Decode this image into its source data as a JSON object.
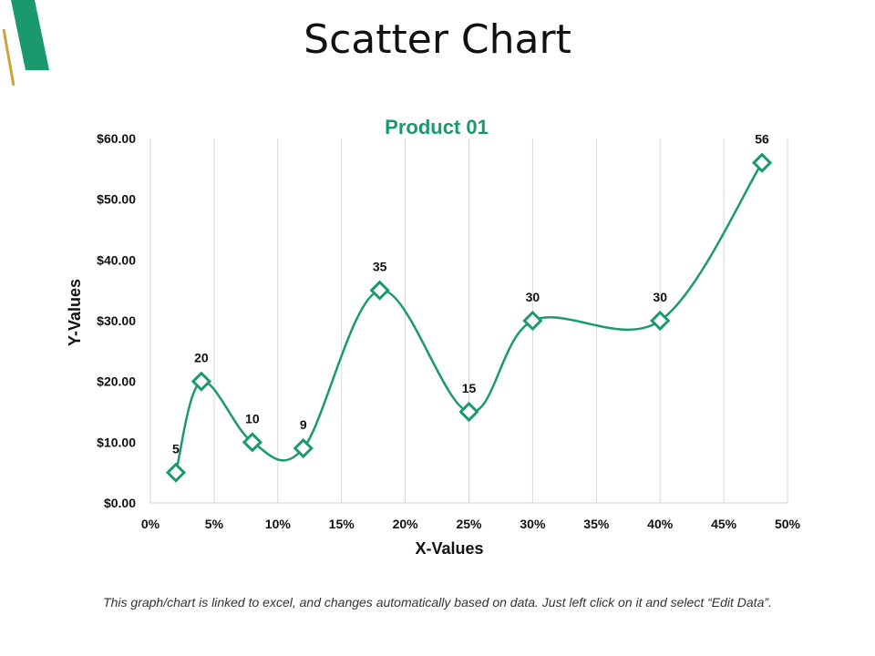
{
  "slide": {
    "title": "Scatter Chart",
    "footnote": "This graph/chart is linked to excel, and changes automatically based on data. Just left click on it and select “Edit Data”."
  },
  "colors": {
    "accent_green": "#1a9a6c",
    "accent_gold": "#c8a43a",
    "gridline": "#d9d9d9",
    "axis_text": "#111111"
  },
  "chart_data": {
    "type": "scatter",
    "title": "Product 01",
    "xlabel": "X-Values",
    "ylabel": "Y-Values",
    "xlim": [
      0,
      0.5
    ],
    "ylim": [
      0,
      60
    ],
    "x_ticks": [
      0,
      0.05,
      0.1,
      0.15,
      0.2,
      0.25,
      0.3,
      0.35,
      0.4,
      0.45,
      0.5
    ],
    "x_tick_labels": [
      "0%",
      "5%",
      "10%",
      "15%",
      "20%",
      "25%",
      "30%",
      "35%",
      "40%",
      "45%",
      "50%"
    ],
    "y_ticks": [
      0,
      10,
      20,
      30,
      40,
      50,
      60
    ],
    "y_tick_labels": [
      "$0.00",
      "$10.00",
      "$20.00",
      "$30.00",
      "$40.00",
      "$50.00",
      "$60.00"
    ],
    "grid": "vertical",
    "smooth_line": true,
    "marker": "diamond",
    "series": [
      {
        "x": [
          0.02,
          0.04,
          0.08,
          0.12,
          0.18,
          0.25,
          0.3,
          0.4,
          0.48
        ],
        "y": [
          5,
          20,
          10,
          9,
          35,
          15,
          30,
          30,
          56
        ],
        "labels": [
          "5",
          "20",
          "10",
          "9",
          "35",
          "15",
          "30",
          "30",
          "56"
        ]
      }
    ]
  }
}
